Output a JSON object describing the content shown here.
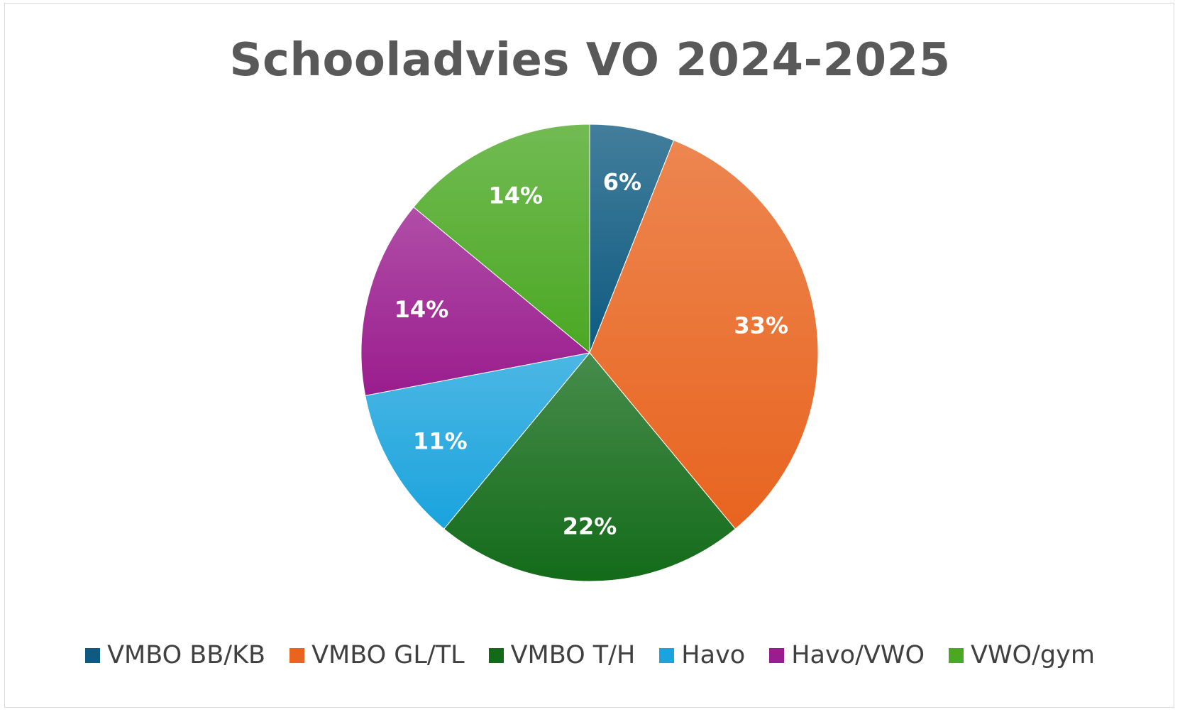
{
  "chart_data": {
    "type": "pie",
    "title": "Schooladvies VO 2024-2025",
    "categories": [
      "VMBO BB/KB",
      "VMBO GL/TL",
      "VMBO T/H",
      "Havo",
      "Havo/VWO",
      "VWO/gym"
    ],
    "values": [
      6,
      33,
      22,
      11,
      14,
      14
    ],
    "labels": [
      "6%",
      "33%",
      "22%",
      "11%",
      "14%",
      "14%"
    ],
    "colors": [
      "#0e5a80",
      "#e8641f",
      "#136b19",
      "#1aa3dd",
      "#9a1c8e",
      "#4aa823"
    ],
    "legend_position": "bottom"
  }
}
